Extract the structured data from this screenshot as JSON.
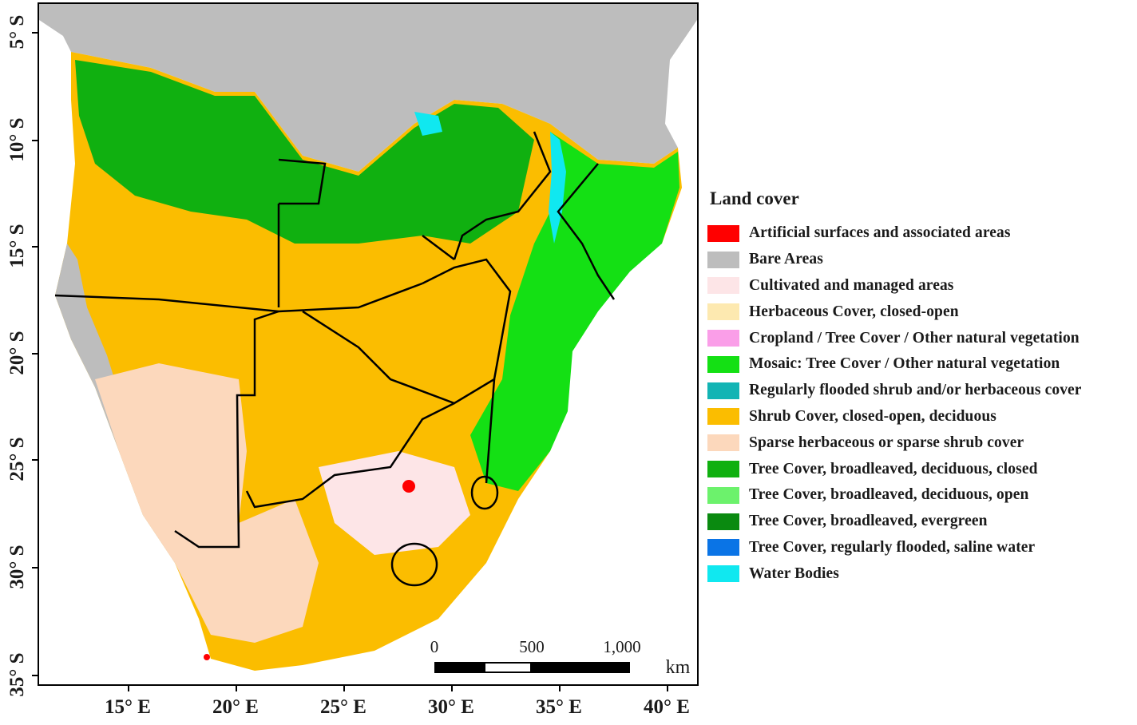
{
  "axes": {
    "latitude_labels": [
      "5° S",
      "10° S",
      "15° S",
      "20° S",
      "25° S",
      "30° S",
      "35° S"
    ],
    "longitude_labels": [
      "15° E",
      "20° E",
      "25° E",
      "30° E",
      "35° E",
      "40° E"
    ]
  },
  "scalebar": {
    "ticks": [
      "0",
      "500",
      "1,000"
    ],
    "unit": "km"
  },
  "legend": {
    "title": "Land cover",
    "items": [
      {
        "label": "Artificial surfaces and associated areas",
        "color": "#ff0000"
      },
      {
        "label": "Bare Areas",
        "color": "#bdbdbd"
      },
      {
        "label": "Cultivated and managed areas",
        "color": "#fde5e7"
      },
      {
        "label": "Herbaceous Cover, closed-open",
        "color": "#fde9b0"
      },
      {
        "label": "Cropland / Tree Cover / Other natural vegetation",
        "color": "#fa9ee8"
      },
      {
        "label": "Mosaic: Tree Cover / Other natural vegetation",
        "color": "#14e014"
      },
      {
        "label": "Regularly flooded shrub and/or herbaceous cover",
        "color": "#12b4b4"
      },
      {
        "label": "Shrub Cover, closed-open, deciduous",
        "color": "#fbbd00"
      },
      {
        "label": "Sparse herbaceous or sparse shrub cover",
        "color": "#fcd8bc"
      },
      {
        "label": "Tree Cover, broadleaved, deciduous, closed",
        "color": "#10b010"
      },
      {
        "label": "Tree Cover, broadleaved, deciduous, open",
        "color": "#6cf26c"
      },
      {
        "label": "Tree Cover, broadleaved, evergreen",
        "color": "#0a8a10"
      },
      {
        "label": "Tree Cover, regularly flooded, saline water",
        "color": "#0a74e6"
      },
      {
        "label": "Water Bodies",
        "color": "#10e8f0"
      }
    ]
  }
}
